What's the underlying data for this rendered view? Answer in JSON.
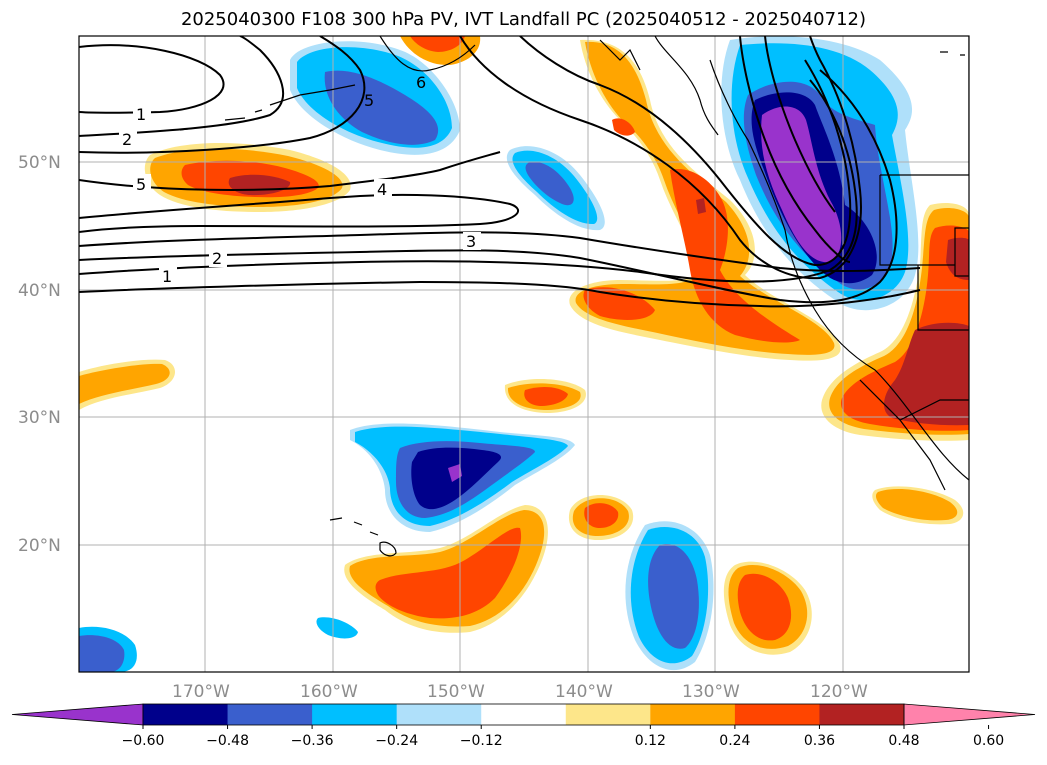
{
  "title": "2025040300 F108 300 hPa PV, IVT Landfall PC (2025040512 - 2025040712)",
  "lat_labels": [
    "50°N",
    "40°N",
    "30°N",
    "20°N"
  ],
  "lon_labels": [
    "170°W",
    "160°W",
    "150°W",
    "140°W",
    "130°W",
    "120°W"
  ],
  "contour_labels": [
    "1",
    "2",
    "5",
    "4",
    "3",
    "2",
    "1",
    "5",
    "6"
  ],
  "colorbar": {
    "labels": [
      "−0.60",
      "−0.48",
      "−0.36",
      "−0.24",
      "−0.12",
      "0.12",
      "0.24",
      "0.36",
      "0.48",
      "0.60"
    ],
    "colors": [
      "#9933cc",
      "#00008b",
      "#3a5fcd",
      "#00bfff",
      "#afe0fa",
      "#ffffff",
      "#fde68a",
      "#ffa500",
      "#ff4500",
      "#b22222",
      "#ff82ab"
    ]
  },
  "colors": {
    "grid": "#b0b0b0",
    "coast": "#000000",
    "contour": "#000000"
  }
}
